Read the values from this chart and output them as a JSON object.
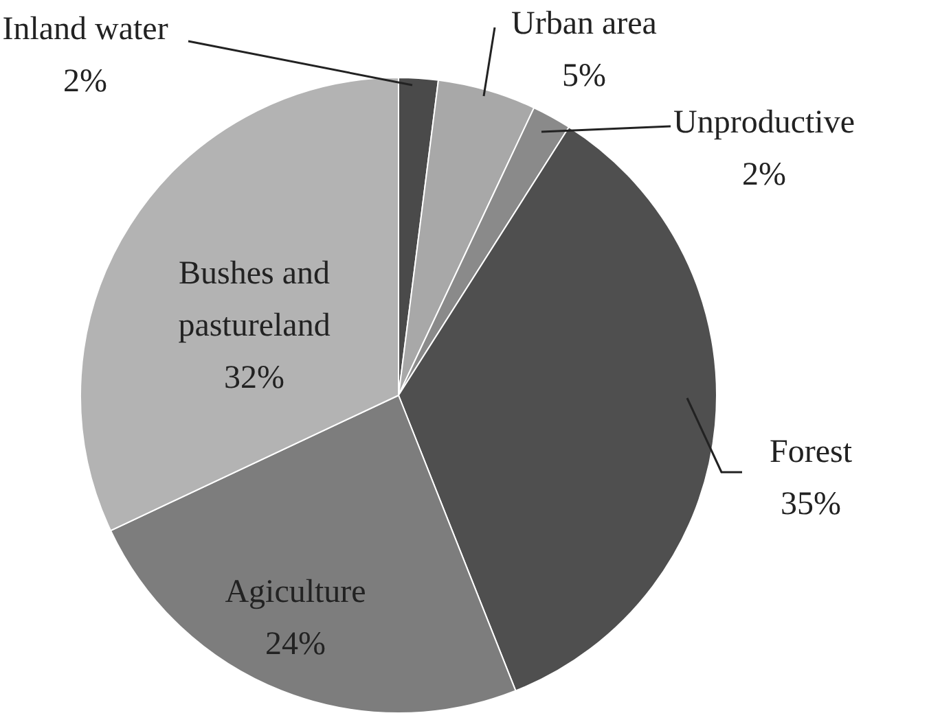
{
  "chart_data": {
    "type": "pie",
    "categories": [
      "Inland water",
      "Urban area",
      "Unproductive",
      "Forest",
      "Agiculture",
      "Bushes and pastureland"
    ],
    "values": [
      2,
      5,
      2,
      35,
      24,
      32
    ],
    "value_labels": [
      "2%",
      "5%",
      "2%",
      "35%",
      "24%",
      "32%"
    ],
    "colors": [
      "#4a4a4a",
      "#a8a8a8",
      "#8a8a8a",
      "#4f4f4f",
      "#7d7d7d",
      "#b3b3b3"
    ],
    "legend": false
  }
}
